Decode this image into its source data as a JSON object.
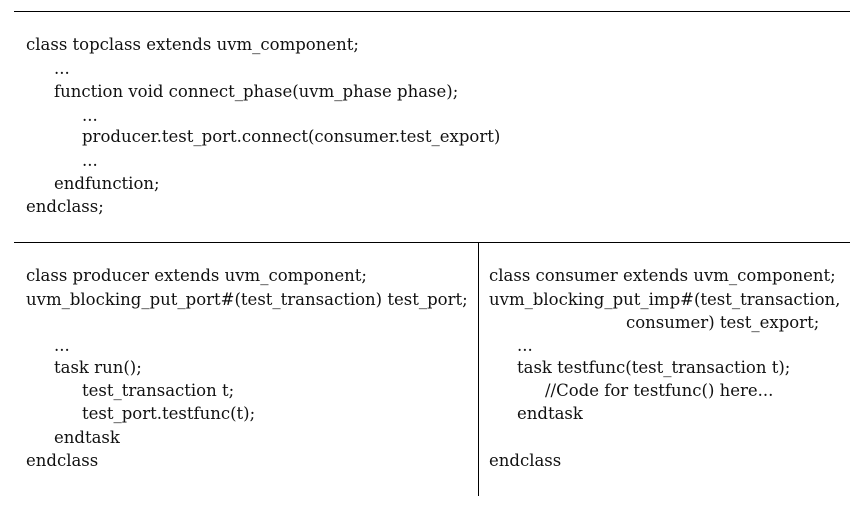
{
  "top_block": {
    "lines": [
      "class topclass extends uvm_component;",
      "...",
      "function void connect_phase(uvm_phase phase);",
      "...",
      "producer.test_port.connect(consumer.test_export)",
      "...",
      "endfunction;",
      "endclass;"
    ]
  },
  "producer_block": {
    "lines": [
      "class producer extends uvm_component;",
      "uvm_blocking_put_port#(test_transaction) test_port;",
      "...",
      "task run();",
      "test_transaction t;",
      "test_port.testfunc(t);",
      "endtask",
      "endclass"
    ]
  },
  "consumer_block": {
    "lines": [
      "class consumer extends uvm_component;",
      "uvm_blocking_put_imp#(test_transaction,",
      "consumer) test_export;",
      "...",
      "task testfunc(test_transaction t);",
      "//Code for testfunc() here...",
      "endtask",
      "endclass"
    ]
  }
}
